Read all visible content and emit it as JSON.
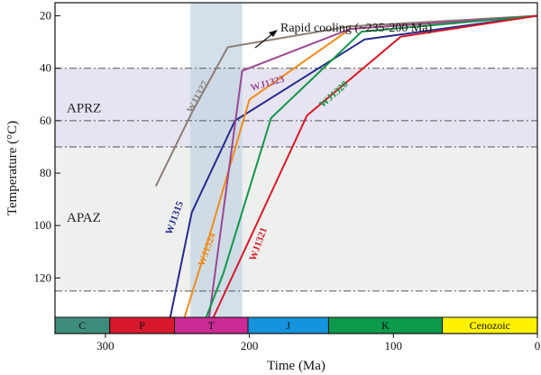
{
  "chart_data": {
    "type": "line",
    "xlabel": "Time (Ma)",
    "ylabel": "Temperature (°C)",
    "xlim": [
      335,
      0
    ],
    "ylim": [
      15,
      135
    ],
    "x_ticks": [
      300,
      200,
      100,
      0
    ],
    "y_ticks": [
      20,
      40,
      60,
      80,
      100,
      120
    ],
    "y_inverted": true,
    "zones": [
      {
        "name": "APRZ",
        "from": 40,
        "to": 70,
        "color": "#e6e4f0"
      },
      {
        "name": "APAZ",
        "from": 70,
        "to": 125,
        "color": "#eef0ee"
      }
    ],
    "dashdot_lines": [
      40,
      60,
      70,
      125
    ],
    "highlight_band": {
      "from": 241,
      "to": 205,
      "color": "#c4d6e3"
    },
    "annotation": "Rapid cooling (~235-200 Ma)",
    "periods": [
      {
        "name": "C",
        "from": 335,
        "to": 297,
        "color": "#3e8c7c"
      },
      {
        "name": "P",
        "from": 297,
        "to": 252,
        "color": "#d8182c"
      },
      {
        "name": "T",
        "from": 252,
        "to": 201,
        "color": "#ca2a93"
      },
      {
        "name": "J",
        "from": 201,
        "to": 145,
        "color": "#1593dc"
      },
      {
        "name": "K",
        "from": 145,
        "to": 66,
        "color": "#0c9a4c"
      },
      {
        "name": "Cenozoic",
        "from": 66,
        "to": 0,
        "color": "#fff200"
      }
    ],
    "series": [
      {
        "name": "WJ1327",
        "color": "#8b7e76",
        "x": [
          265,
          240,
          215,
          130,
          0
        ],
        "y": [
          85,
          57,
          32,
          24,
          20
        ]
      },
      {
        "name": "WJ1315",
        "color": "#262a8c",
        "x": [
          255,
          240,
          210,
          120,
          0
        ],
        "y": [
          135,
          95,
          60,
          29,
          20
        ]
      },
      {
        "name": "WJ1324",
        "color": "#ef8b1a",
        "x": [
          245,
          232,
          200,
          130,
          0
        ],
        "y": [
          135,
          112,
          52,
          25,
          20
        ]
      },
      {
        "name": "WJ1323",
        "color": "#9b4893",
        "x": [
          228,
          205,
          130,
          0
        ],
        "y": [
          135,
          41,
          25,
          20
        ]
      },
      {
        "name": "WJ1320",
        "color": "#12964a",
        "x": [
          230,
          218,
          185,
          122,
          0
        ],
        "y": [
          135,
          118,
          59,
          26,
          20
        ]
      },
      {
        "name": "WJ1321",
        "color": "#d81a27",
        "x": [
          225,
          160,
          95,
          0
        ],
        "y": [
          135,
          58,
          28,
          20
        ]
      }
    ]
  }
}
